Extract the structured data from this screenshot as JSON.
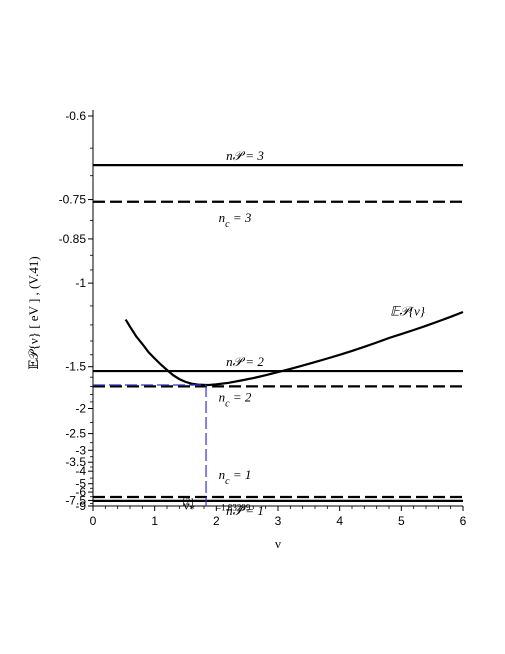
{
  "chart_data": {
    "type": "line",
    "xlabel": "ν",
    "ylabel": "𝔼𝒫{ν} [ eV ] , (V.41)",
    "xlim": [
      0,
      6
    ],
    "x_ticks": [
      "0",
      "1",
      "2",
      "3",
      "4",
      "5",
      "6"
    ],
    "y_ticks": [
      "-0.6",
      "-0.75",
      "-0.85",
      "-1",
      "-1.5",
      "-2",
      "-2.5",
      "-3",
      "-3.5",
      "-4",
      "-5",
      "-6",
      "-7.5",
      "-9"
    ],
    "y_tick_values": [
      -0.6,
      -0.75,
      -0.85,
      -1,
      -1.5,
      -2,
      -2.5,
      -3,
      -3.5,
      -4,
      -5,
      -6,
      -7.5,
      -9
    ],
    "y_scale": "reciprocal",
    "grid": false,
    "colors": {
      "curve": "#000000",
      "marker": "#3333cc"
    },
    "series": [
      {
        "name": "𝔼𝒫{ν}",
        "style": "solid",
        "x": [
          0.53,
          0.6,
          0.7,
          0.8,
          0.9,
          1.0,
          1.1,
          1.2,
          1.3,
          1.4,
          1.5,
          1.6,
          1.7,
          1.83299,
          1.9,
          2.0,
          2.2,
          2.4,
          2.6,
          2.8,
          3.0,
          3.2,
          3.4,
          3.6,
          3.8,
          4.0,
          4.2,
          4.4,
          4.6,
          4.8,
          5.0,
          5.2,
          5.4,
          5.6,
          5.8,
          6.0
        ],
        "y": [
          -1.17,
          -1.21,
          -1.27,
          -1.32,
          -1.38,
          -1.43,
          -1.48,
          -1.53,
          -1.58,
          -1.62,
          -1.65,
          -1.67,
          -1.68,
          -1.684,
          -1.683,
          -1.678,
          -1.66,
          -1.635,
          -1.61,
          -1.58,
          -1.55,
          -1.52,
          -1.49,
          -1.46,
          -1.43,
          -1.4,
          -1.37,
          -1.34,
          -1.31,
          -1.28,
          -1.255,
          -1.23,
          -1.205,
          -1.18,
          -1.155,
          -1.13
        ]
      },
      {
        "name": "n𝒫 = 3",
        "style": "solid",
        "y_value": -0.68
      },
      {
        "name": "nc = 3",
        "style": "dashed",
        "y_value": -0.755
      },
      {
        "name": "n𝒫 = 2",
        "style": "solid",
        "y_value": -1.54
      },
      {
        "name": "nc = 2",
        "style": "dashed",
        "y_value": -1.7
      },
      {
        "name": "nc = 1",
        "style": "dashed",
        "y_value": -6.8
      },
      {
        "name": "n𝒫 = 1",
        "style": "solid",
        "y_value": -7.6
      }
    ],
    "marker": {
      "x": 1.83299,
      "y": -1.684,
      "label": "ν",
      "superscript": "{2}",
      "subscript": "*",
      "value_text": "=1.83299"
    },
    "labels": {
      "np3": "n𝒫 = 3",
      "nc3": "n",
      "nc3_sub": "c",
      "nc3_rest": "= 3",
      "np2": "n𝒫 = 2",
      "nc2": "n",
      "nc2_sub": "c",
      "nc2_rest": "= 2",
      "nc1": "n",
      "nc1_sub": "c",
      "nc1_rest": "= 1",
      "np1": "n𝒫 = 1",
      "curve": "𝔼𝒫{ν}"
    }
  }
}
